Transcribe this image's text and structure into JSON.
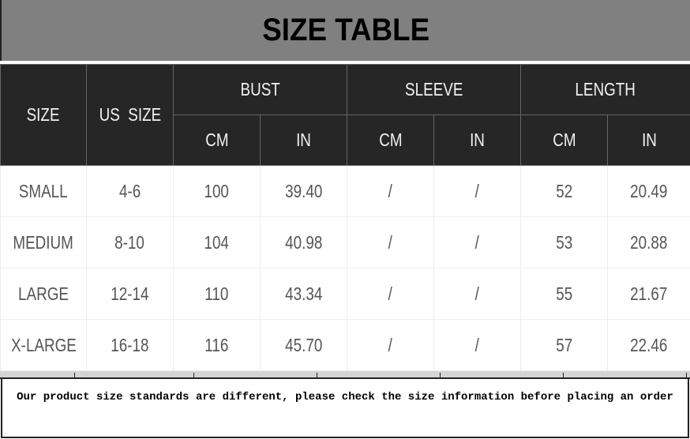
{
  "title": "SIZE TABLE",
  "headers": {
    "size": "SIZE",
    "us_size": "US  SIZE",
    "bust": "BUST",
    "sleeve": "SLEEVE",
    "length": "LENGTH",
    "cm": "CM",
    "in": "IN"
  },
  "rows": [
    [
      "SMALL",
      "4-6",
      "100",
      "39.40",
      "/",
      "/",
      "52",
      "20.49"
    ],
    [
      "MEDIUM",
      "8-10",
      "104",
      "40.98",
      "/",
      "/",
      "53",
      "20.88"
    ],
    [
      "LARGE",
      "12-14",
      "110",
      "43.34",
      "/",
      "/",
      "55",
      "21.67"
    ],
    [
      "X-LARGE",
      "16-18",
      "116",
      "45.70",
      "/",
      "/",
      "57",
      "22.46"
    ]
  ],
  "note": "Our product size standards are different, please check the size information before placing an order"
}
